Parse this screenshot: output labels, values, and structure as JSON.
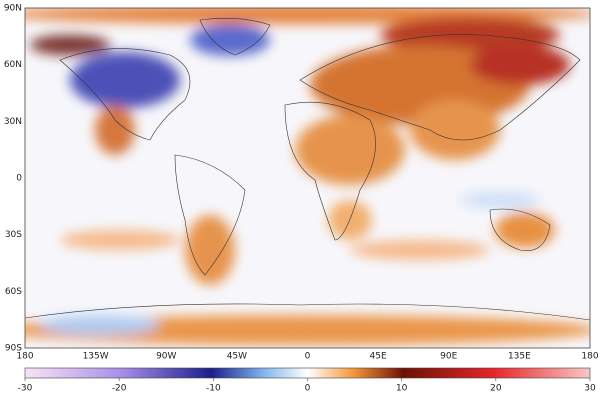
{
  "map": {
    "lat_labels": [
      "90N",
      "60N",
      "30N",
      "0",
      "30S",
      "60S",
      "90S"
    ],
    "lon_labels": [
      "180",
      "135W",
      "90W",
      "45W",
      "0",
      "45E",
      "90E",
      "135E",
      "180"
    ]
  },
  "colorbar": {
    "range": [
      -30,
      30
    ],
    "ticks": [
      -30,
      -20,
      -10,
      0,
      10,
      20,
      30
    ]
  }
}
